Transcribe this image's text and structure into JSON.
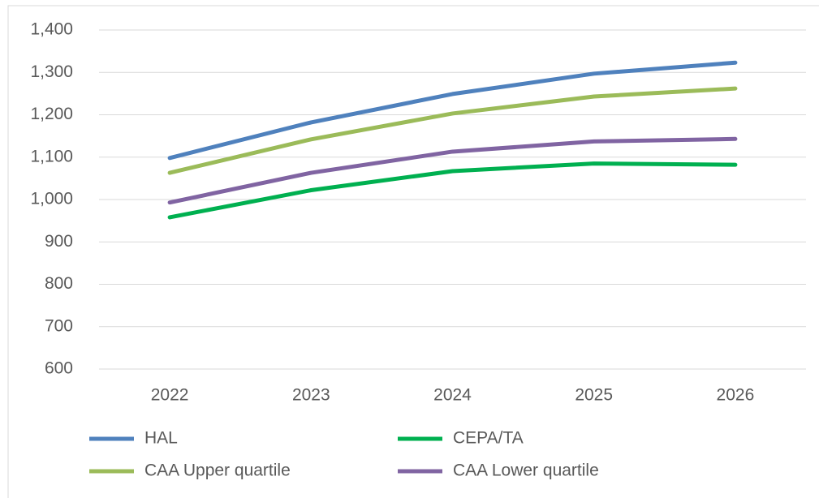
{
  "chart_data": {
    "type": "line",
    "categories": [
      "2022",
      "2023",
      "2024",
      "2025",
      "2026"
    ],
    "series": [
      {
        "name": "HAL",
        "color": "#4f81bd",
        "values": [
          1098,
          1182,
          1249,
          1297,
          1323
        ]
      },
      {
        "name": "CEPA/TA",
        "color": "#00b050",
        "values": [
          958,
          1022,
          1067,
          1085,
          1082
        ]
      },
      {
        "name": "CAA Upper quartile",
        "color": "#9bbb59",
        "values": [
          1063,
          1142,
          1203,
          1243,
          1262
        ]
      },
      {
        "name": "CAA Lower quartile",
        "color": "#8064a2",
        "values": [
          993,
          1063,
          1113,
          1137,
          1143
        ]
      }
    ],
    "ylim": [
      600,
      1400
    ],
    "yticks": [
      600,
      700,
      800,
      900,
      {
        "value": 1000,
        "label": "1,000"
      },
      {
        "value": 1100,
        "label": "1,100"
      },
      {
        "value": 1200,
        "label": "1,200"
      },
      {
        "value": 1300,
        "label": "1,300"
      },
      {
        "value": 1400,
        "label": "1,400"
      }
    ],
    "grid": true,
    "legend": "bottom"
  }
}
